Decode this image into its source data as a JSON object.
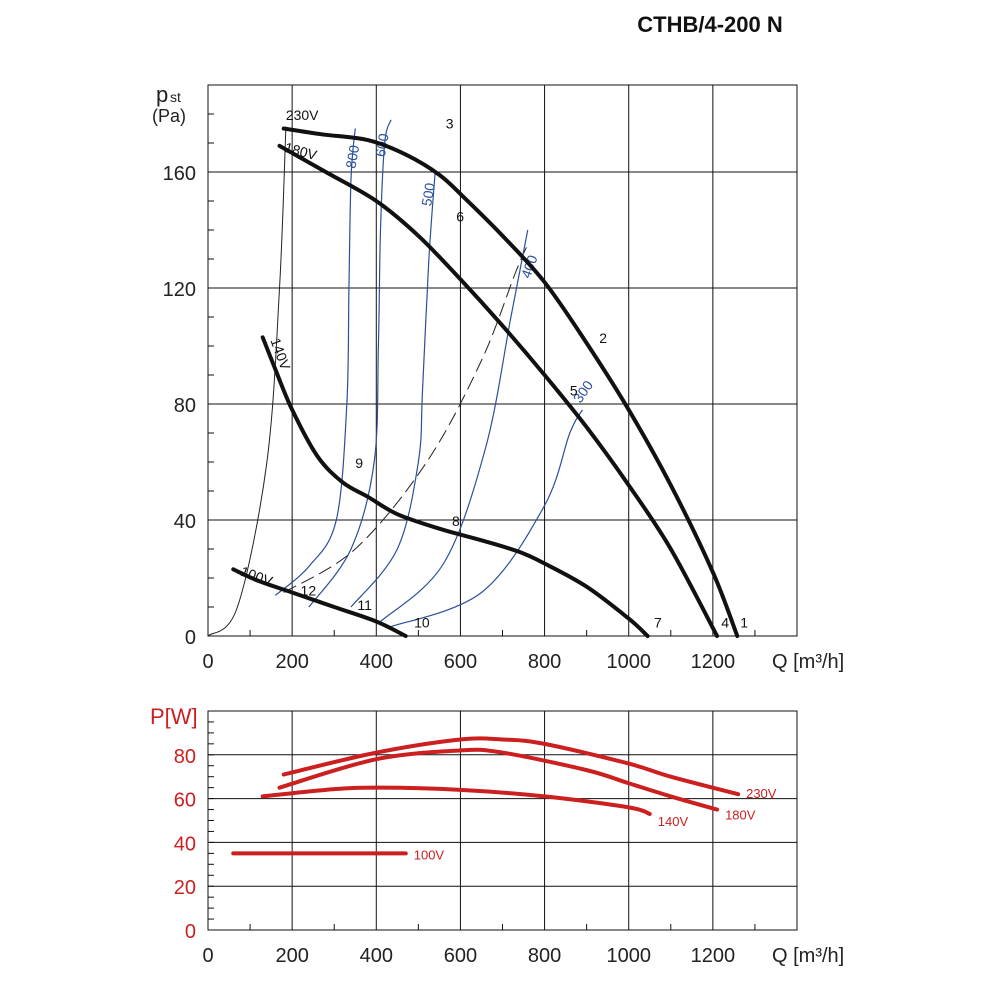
{
  "title": "CTHB/4-200 N",
  "colors": {
    "pressure_curve": "#111111",
    "iso_curve": "#2a4f9c",
    "power_curve": "#cc1f1f",
    "grid": "#111111"
  },
  "chart_data": [
    {
      "type": "line",
      "name": "pressure",
      "ylabel": "p",
      "ylabel_sub": "st",
      "yunit": "(Pa)",
      "xlabel": "Q [m³/h]",
      "xlim": [
        0,
        1400
      ],
      "ylim": [
        0,
        190
      ],
      "xticks": [
        0,
        200,
        400,
        600,
        800,
        1000,
        1200
      ],
      "yticks": [
        0,
        40,
        80,
        120,
        160
      ],
      "grid": true,
      "series": [
        {
          "name": "230V",
          "points": [
            [
              180,
              175
            ],
            [
              270,
              173
            ],
            [
              380,
              171
            ],
            [
              470,
              166
            ],
            [
              550,
              159
            ],
            [
              610,
              151
            ],
            [
              700,
              138
            ],
            [
              800,
              122
            ],
            [
              900,
              101
            ],
            [
              1000,
              78
            ],
            [
              1100,
              52
            ],
            [
              1200,
              22
            ],
            [
              1258,
              0
            ]
          ]
        },
        {
          "name": "180V",
          "points": [
            [
              170,
              169
            ],
            [
              280,
              160
            ],
            [
              400,
              150
            ],
            [
              500,
              138
            ],
            [
              600,
              123
            ],
            [
              700,
              107
            ],
            [
              800,
              90
            ],
            [
              900,
              72
            ],
            [
              1000,
              52
            ],
            [
              1100,
              30
            ],
            [
              1210,
              0
            ]
          ]
        },
        {
          "name": "140V",
          "points": [
            [
              130,
              103
            ],
            [
              160,
              92
            ],
            [
              200,
              78
            ],
            [
              260,
              62
            ],
            [
              320,
              53
            ],
            [
              380,
              48
            ],
            [
              450,
              42
            ],
            [
              550,
              37
            ],
            [
              650,
              33
            ],
            [
              740,
              29
            ],
            [
              800,
              25
            ],
            [
              900,
              17
            ],
            [
              1000,
              6
            ],
            [
              1045,
              0
            ]
          ]
        },
        {
          "name": "100V",
          "points": [
            [
              60,
              23
            ],
            [
              120,
              19
            ],
            [
              200,
              15
            ],
            [
              300,
              10
            ],
            [
              400,
              5
            ],
            [
              470,
              0
            ]
          ]
        }
      ],
      "iso_lines": [
        {
          "label": "800",
          "points": [
            [
              160,
              14
            ],
            [
              240,
              24
            ],
            [
              305,
              40
            ],
            [
              330,
              80
            ],
            [
              335,
              120
            ],
            [
              340,
              158
            ],
            [
              350,
              175
            ]
          ]
        },
        {
          "label": "600",
          "points": [
            [
              240,
              10
            ],
            [
              340,
              30
            ],
            [
              395,
              60
            ],
            [
              405,
              100
            ],
            [
              410,
              140
            ],
            [
              420,
              170
            ],
            [
              435,
              178
            ]
          ]
        },
        {
          "label": "500",
          "points": [
            [
              340,
              10
            ],
            [
              450,
              30
            ],
            [
              500,
              60
            ],
            [
              510,
              85
            ],
            [
              525,
              130
            ],
            [
              540,
              160
            ]
          ]
        },
        {
          "label": "400",
          "points": [
            [
              410,
              5
            ],
            [
              560,
              25
            ],
            [
              660,
              65
            ],
            [
              720,
              110
            ],
            [
              760,
              140
            ]
          ]
        },
        {
          "label": "300",
          "points": [
            [
              430,
              3
            ],
            [
              650,
              15
            ],
            [
              800,
              45
            ],
            [
              860,
              70
            ],
            [
              890,
              78
            ]
          ]
        }
      ],
      "system_curve": [
        [
          0,
          0
        ],
        [
          70,
          10
        ],
        [
          140,
          60
        ],
        [
          170,
          120
        ],
        [
          185,
          175
        ]
      ],
      "dashed_curve": [
        [
          180,
          15
        ],
        [
          350,
          30
        ],
        [
          520,
          60
        ],
        [
          650,
          95
        ],
        [
          730,
          125
        ],
        [
          760,
          135
        ]
      ],
      "curve_labels": [
        {
          "text": "230V",
          "x": 185,
          "y": 178,
          "rot": 0
        },
        {
          "text": "180V",
          "x": 180,
          "y": 167,
          "rot": 15
        },
        {
          "text": "140V",
          "x": 148,
          "y": 102,
          "rot": 70
        },
        {
          "text": "100V",
          "x": 75,
          "y": 21,
          "rot": 20
        }
      ],
      "point_labels": [
        {
          "text": "1",
          "x": 1265,
          "y": 3
        },
        {
          "text": "2",
          "x": 930,
          "y": 101
        },
        {
          "text": "3",
          "x": 565,
          "y": 175
        },
        {
          "text": "4",
          "x": 1220,
          "y": 3
        },
        {
          "text": "5",
          "x": 860,
          "y": 83
        },
        {
          "text": "6",
          "x": 590,
          "y": 143
        },
        {
          "text": "7",
          "x": 1060,
          "y": 3
        },
        {
          "text": "8",
          "x": 580,
          "y": 38
        },
        {
          "text": "9",
          "x": 350,
          "y": 58
        },
        {
          "text": "10",
          "x": 490,
          "y": 3
        },
        {
          "text": "11",
          "x": 355,
          "y": 9
        },
        {
          "text": "12",
          "x": 220,
          "y": 14
        }
      ]
    },
    {
      "type": "line",
      "name": "power",
      "ylabel": "P[W]",
      "xlabel": "Q [m³/h]",
      "xlim": [
        0,
        1400
      ],
      "ylim": [
        0,
        100
      ],
      "xticks": [
        0,
        200,
        400,
        600,
        800,
        1000,
        1200
      ],
      "yticks": [
        0,
        20,
        40,
        60,
        80
      ],
      "grid": true,
      "series": [
        {
          "name": "230V",
          "points": [
            [
              180,
              71
            ],
            [
              400,
              81
            ],
            [
              600,
              87
            ],
            [
              700,
              87
            ],
            [
              800,
              85
            ],
            [
              1000,
              76
            ],
            [
              1100,
              70
            ],
            [
              1260,
              62
            ]
          ]
        },
        {
          "name": "180V",
          "points": [
            [
              170,
              65
            ],
            [
              400,
              78
            ],
            [
              600,
              82
            ],
            [
              700,
              81
            ],
            [
              900,
              73
            ],
            [
              1000,
              67
            ],
            [
              1100,
              61
            ],
            [
              1210,
              55
            ]
          ]
        },
        {
          "name": "140V",
          "points": [
            [
              130,
              61
            ],
            [
              280,
              64
            ],
            [
              400,
              65
            ],
            [
              600,
              64
            ],
            [
              800,
              61
            ],
            [
              1000,
              56
            ],
            [
              1050,
              53
            ]
          ]
        },
        {
          "name": "100V",
          "points": [
            [
              60,
              35
            ],
            [
              200,
              35
            ],
            [
              400,
              35
            ],
            [
              470,
              35
            ]
          ]
        }
      ]
    }
  ]
}
